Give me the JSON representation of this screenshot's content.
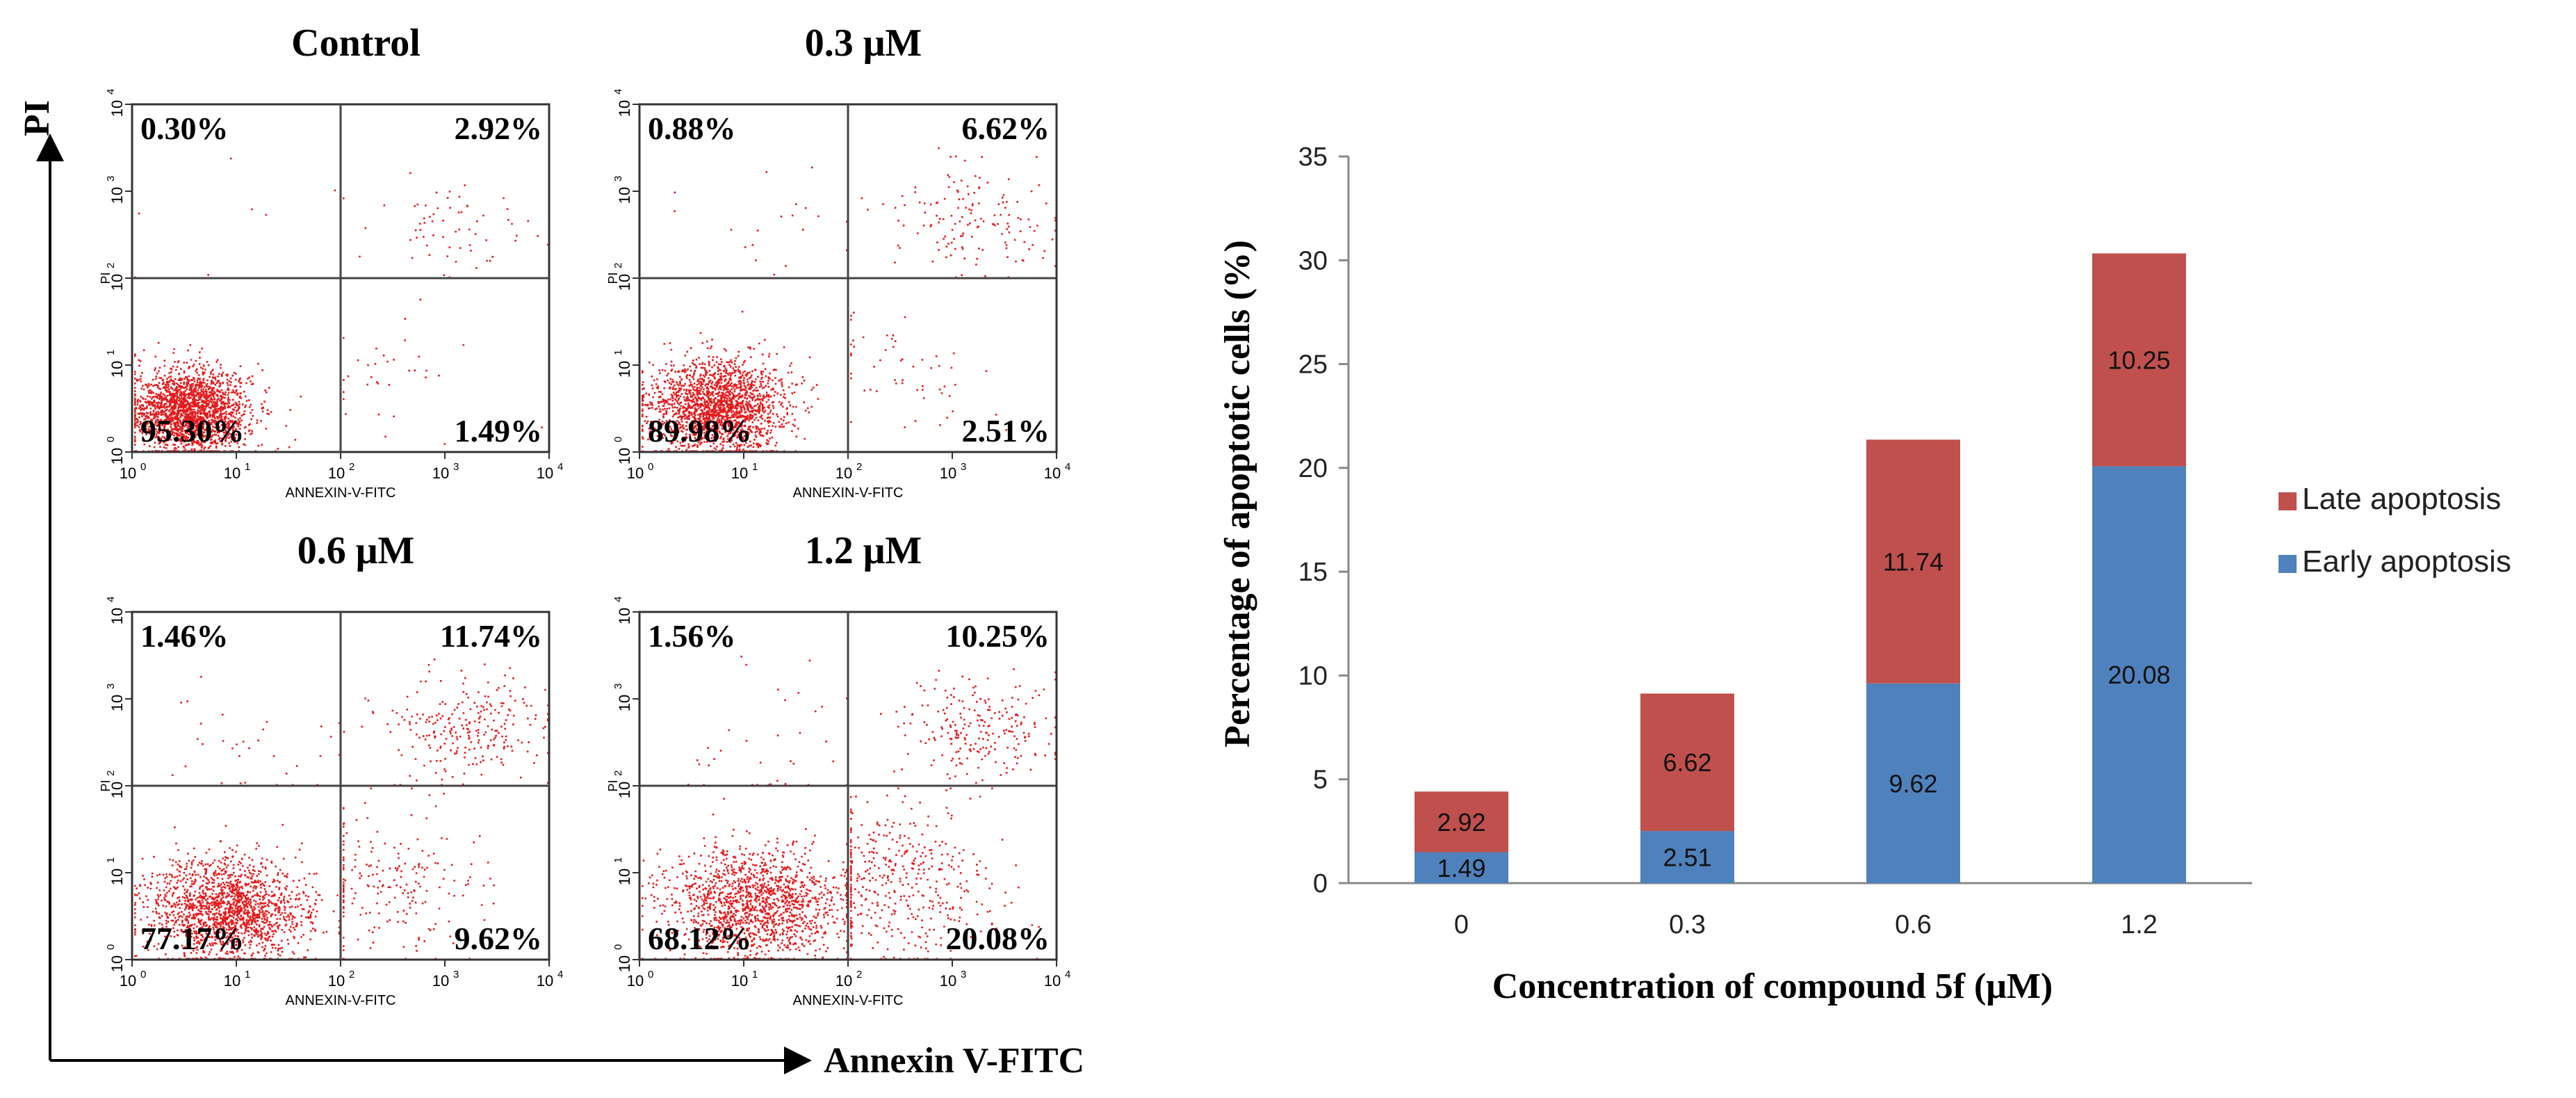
{
  "figure": {
    "axis_y_label": "PI",
    "axis_x_label": "Annexin V-FITC"
  },
  "flow_panels": [
    {
      "title": "Control",
      "quadrants": {
        "ul": "0.30%",
        "ur": "2.92%",
        "ll": "95.30%",
        "lr": "1.49%"
      },
      "xlabel": "ANNEXIN-V-FITC",
      "ylabel": "PI",
      "ticks": [
        "10",
        "10",
        "10",
        "10",
        "10"
      ],
      "tick_exp": [
        "0",
        "1",
        "2",
        "3",
        "4"
      ]
    },
    {
      "title": "0.3 μM",
      "quadrants": {
        "ul": "0.88%",
        "ur": "6.62%",
        "ll": "89.98%",
        "lr": "2.51%"
      },
      "xlabel": "ANNEXIN-V-FITC",
      "ylabel": "PI",
      "ticks": [
        "10",
        "10",
        "10",
        "10",
        "10"
      ],
      "tick_exp": [
        "0",
        "1",
        "2",
        "3",
        "4"
      ]
    },
    {
      "title": "0.6 μM",
      "quadrants": {
        "ul": "1.46%",
        "ur": "11.74%",
        "ll": "77.17%",
        "lr": "9.62%"
      },
      "xlabel": "ANNEXIN-V-FITC",
      "ylabel": "PI",
      "ticks": [
        "10",
        "10",
        "10",
        "10",
        "10"
      ],
      "tick_exp": [
        "0",
        "1",
        "2",
        "3",
        "4"
      ]
    },
    {
      "title": "1.2 μM",
      "quadrants": {
        "ul": "1.56%",
        "ur": "10.25%",
        "ll": "68.12%",
        "lr": "20.08%"
      },
      "xlabel": "ANNEXIN-V-FITC",
      "ylabel": "PI",
      "ticks": [
        "10",
        "10",
        "10",
        "10",
        "10"
      ],
      "tick_exp": [
        "0",
        "1",
        "2",
        "3",
        "4"
      ]
    }
  ],
  "chart_data": {
    "type": "bar",
    "stacked": true,
    "categories": [
      "0",
      "0.3",
      "0.6",
      "1.2"
    ],
    "series": [
      {
        "name": "Early apoptosis",
        "values": [
          1.49,
          2.51,
          9.62,
          20.08
        ],
        "labels": [
          "1.49",
          "2.51",
          "9.62",
          "20.08"
        ],
        "color": "#4f81bd"
      },
      {
        "name": "Late apoptosis",
        "values": [
          2.92,
          6.62,
          11.74,
          10.25
        ],
        "labels": [
          "2.92",
          "6.62",
          "11.74",
          "10.25"
        ],
        "color": "#c0504d"
      }
    ],
    "title": "",
    "xlabel": "Concentration of compound 5f (μM)",
    "ylabel": "Percentage of apoptotic cells (%)",
    "ylim": [
      0,
      35
    ],
    "yticks": [
      0,
      5,
      10,
      15,
      20,
      25,
      30,
      35
    ],
    "ytick_labels": [
      "0",
      "5",
      "10",
      "15",
      "20",
      "25",
      "30",
      "35"
    ],
    "grid": false,
    "legend": "right",
    "legend_order": [
      "Late apoptosis",
      "Early apoptosis"
    ]
  },
  "colors": {
    "dots": "#e31a1c",
    "early": "#4f81bd",
    "late": "#c0504d",
    "text": "#000000"
  }
}
